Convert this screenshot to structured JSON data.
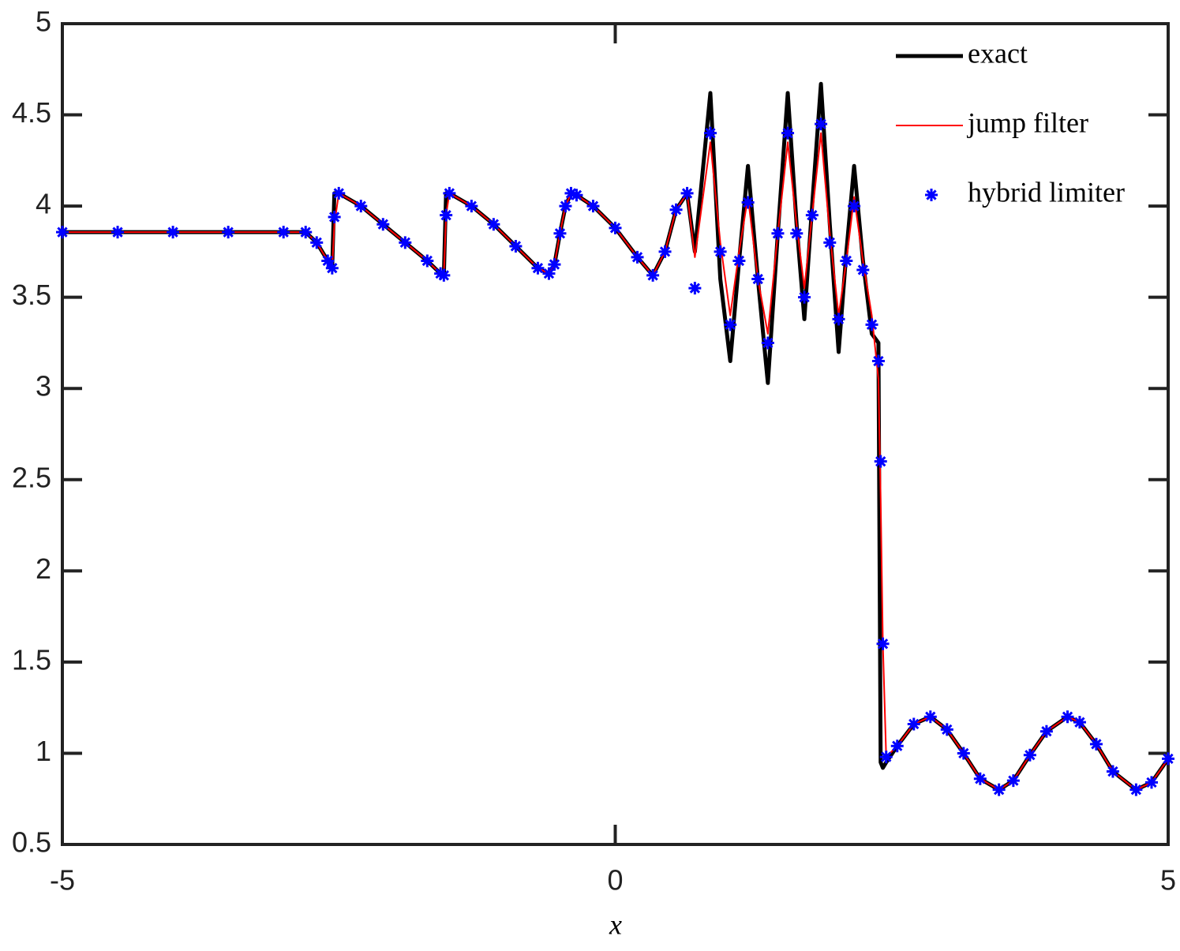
{
  "chart_data": {
    "type": "line",
    "x_label": "x",
    "xlim": [
      -5,
      5
    ],
    "ylim": [
      0.5,
      5
    ],
    "xticks": [
      -5,
      0,
      5
    ],
    "yticks": [
      0.5,
      1,
      1.5,
      2,
      2.5,
      3,
      3.5,
      4,
      4.5,
      5
    ],
    "legend": "top-right",
    "x": [
      -5,
      -4.5,
      -4,
      -3.5,
      -3,
      -2.8,
      -2.7,
      -2.6,
      -2.56,
      -2.54,
      -2.5,
      -2.3,
      -2.1,
      -1.9,
      -1.7,
      -1.58,
      -1.55,
      -1.53,
      -1.5,
      -1.3,
      -1.1,
      -0.9,
      -0.7,
      -0.6,
      -0.55,
      -0.5,
      -0.45,
      -0.4,
      -0.35,
      -0.2,
      0,
      0.2,
      0.34,
      0.45,
      0.55,
      0.65,
      0.72,
      0.86,
      0.95,
      1.04,
      1.12,
      1.2,
      1.29,
      1.38,
      1.47,
      1.56,
      1.64,
      1.71,
      1.78,
      1.86,
      1.94,
      2.02,
      2.09,
      2.16,
      2.24,
      2.32,
      2.38,
      2.4,
      2.42,
      2.45,
      2.55,
      2.7,
      2.85,
      3,
      3.15,
      3.3,
      3.47,
      3.6,
      3.75,
      3.9,
      4.09,
      4.2,
      4.35,
      4.5,
      4.71,
      4.85,
      5
    ],
    "series": [
      {
        "name": "exact",
        "color": "#000000",
        "style": "line",
        "values": [
          3.857,
          3.857,
          3.857,
          3.857,
          3.857,
          3.857,
          3.8,
          3.7,
          3.66,
          4.07,
          4.07,
          4.0,
          3.9,
          3.8,
          3.7,
          3.63,
          3.62,
          4.07,
          4.07,
          4.0,
          3.9,
          3.78,
          3.66,
          3.63,
          3.68,
          3.85,
          4.0,
          4.07,
          4.06,
          4.0,
          3.88,
          3.72,
          3.62,
          3.75,
          3.98,
          4.07,
          3.75,
          4.62,
          3.6,
          3.15,
          3.7,
          4.22,
          3.6,
          3.03,
          3.85,
          4.62,
          3.9,
          3.38,
          4.0,
          4.67,
          3.9,
          3.2,
          3.75,
          4.22,
          3.7,
          3.3,
          3.25,
          0.95,
          0.92,
          0.95,
          1.04,
          1.16,
          1.2,
          1.13,
          1.0,
          0.86,
          0.8,
          0.85,
          0.99,
          1.12,
          1.2,
          1.17,
          1.05,
          0.9,
          0.8,
          0.84,
          0.97
        ]
      },
      {
        "name": "jump filter",
        "color": "#ff0000",
        "style": "line",
        "values": [
          3.857,
          3.857,
          3.857,
          3.857,
          3.857,
          3.857,
          3.8,
          3.7,
          3.66,
          3.9,
          4.07,
          4.0,
          3.9,
          3.8,
          3.7,
          3.63,
          3.62,
          3.95,
          4.07,
          4.0,
          3.9,
          3.78,
          3.66,
          3.63,
          3.68,
          3.85,
          4.0,
          4.07,
          4.06,
          4.0,
          3.88,
          3.72,
          3.62,
          3.75,
          3.98,
          4.07,
          3.72,
          4.35,
          3.8,
          3.4,
          3.75,
          4.05,
          3.6,
          3.3,
          3.85,
          4.35,
          3.9,
          3.55,
          3.95,
          4.4,
          3.85,
          3.4,
          3.7,
          4.05,
          3.7,
          3.4,
          3.05,
          2.4,
          1.6,
          0.98,
          1.04,
          1.16,
          1.2,
          1.13,
          1.0,
          0.86,
          0.8,
          0.85,
          0.99,
          1.12,
          1.2,
          1.17,
          1.05,
          0.9,
          0.8,
          0.84,
          0.97
        ]
      },
      {
        "name": "hybrid limiter",
        "color": "#0000ff",
        "style": "marker",
        "values": [
          3.857,
          3.857,
          3.857,
          3.857,
          3.857,
          3.857,
          3.8,
          3.7,
          3.66,
          3.94,
          4.07,
          4.0,
          3.9,
          3.8,
          3.7,
          3.63,
          3.62,
          3.95,
          4.07,
          4.0,
          3.9,
          3.78,
          3.66,
          3.63,
          3.68,
          3.85,
          4.0,
          4.07,
          4.06,
          4.0,
          3.88,
          3.72,
          3.62,
          3.75,
          3.98,
          4.07,
          3.55,
          4.4,
          3.75,
          3.35,
          3.7,
          4.02,
          3.6,
          3.25,
          3.85,
          4.4,
          3.85,
          3.5,
          3.95,
          4.45,
          3.8,
          3.38,
          3.7,
          4.0,
          3.65,
          3.35,
          3.15,
          2.6,
          1.6,
          0.98,
          1.04,
          1.16,
          1.2,
          1.13,
          1.0,
          0.86,
          0.8,
          0.85,
          0.99,
          1.12,
          1.2,
          1.17,
          1.05,
          0.9,
          0.8,
          0.84,
          0.97
        ]
      }
    ]
  }
}
